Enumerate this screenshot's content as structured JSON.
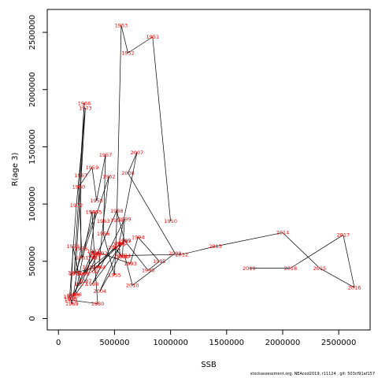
{
  "chart_data": {
    "type": "line",
    "title": "",
    "xlabel": "SSB",
    "ylabel": "R(age 3)",
    "xlim": [
      -100000,
      2780000
    ],
    "ylim": [
      -100000,
      2700000
    ],
    "x_ticks": [
      0,
      500000,
      1000000,
      1500000,
      2000000,
      2500000
    ],
    "x_tick_labels": [
      "0",
      "500000",
      "1000000",
      "1500000",
      "2000000",
      "2500000"
    ],
    "y_ticks": [
      0,
      500000,
      1000000,
      1500000,
      2000000,
      2500000
    ],
    "y_tick_labels": [
      "0",
      "500000",
      "1000000",
      "1500000",
      "2000000",
      "2500000"
    ],
    "grid": false,
    "line_color": "#000000",
    "label_color": "#ff0000",
    "series": [
      {
        "points": [
          {
            "year": "1950",
            "x": 1000000,
            "y": 850000
          },
          {
            "year": "1951",
            "x": 840000,
            "y": 2460000
          },
          {
            "year": "1952",
            "x": 620000,
            "y": 2320000
          },
          {
            "year": "1953",
            "x": 560000,
            "y": 2560000
          },
          {
            "year": "1954",
            "x": 520000,
            "y": 860000
          },
          {
            "year": "1955",
            "x": 500000,
            "y": 380000
          },
          {
            "year": "1956",
            "x": 400000,
            "y": 740000
          },
          {
            "year": "1957",
            "x": 420000,
            "y": 1430000
          },
          {
            "year": "1958",
            "x": 340000,
            "y": 1030000
          },
          {
            "year": "1959",
            "x": 300000,
            "y": 1320000
          },
          {
            "year": "1960",
            "x": 180000,
            "y": 1150000
          },
          {
            "year": "1961",
            "x": 210000,
            "y": 530000
          },
          {
            "year": "1962",
            "x": 450000,
            "y": 1240000
          },
          {
            "year": "1963",
            "x": 400000,
            "y": 850000
          },
          {
            "year": "1964",
            "x": 360000,
            "y": 450000
          },
          {
            "year": "1965",
            "x": 140000,
            "y": 400000
          },
          {
            "year": "1966",
            "x": 230000,
            "y": 1880000
          },
          {
            "year": "1967",
            "x": 200000,
            "y": 1250000
          },
          {
            "year": "1968",
            "x": 200000,
            "y": 610000
          },
          {
            "year": "1969",
            "x": 120000,
            "y": 130000
          },
          {
            "year": "1970",
            "x": 110000,
            "y": 170000
          },
          {
            "year": "1971",
            "x": 100000,
            "y": 190000
          },
          {
            "year": "1972",
            "x": 160000,
            "y": 990000
          },
          {
            "year": "1973",
            "x": 240000,
            "y": 1840000
          },
          {
            "year": "1974",
            "x": 150000,
            "y": 390000
          },
          {
            "year": "1975",
            "x": 330000,
            "y": 930000
          },
          {
            "year": "1976",
            "x": 270000,
            "y": 450000
          },
          {
            "year": "1977",
            "x": 200000,
            "y": 300000
          },
          {
            "year": "1978",
            "x": 130000,
            "y": 630000
          },
          {
            "year": "1979",
            "x": 110000,
            "y": 160000
          },
          {
            "year": "1980",
            "x": 350000,
            "y": 130000
          },
          {
            "year": "1981",
            "x": 320000,
            "y": 530000
          },
          {
            "year": "1982",
            "x": 310000,
            "y": 590000
          },
          {
            "year": "1983",
            "x": 130000,
            "y": 200000
          },
          {
            "year": "1984",
            "x": 320000,
            "y": 560000
          },
          {
            "year": "1985",
            "x": 300000,
            "y": 930000
          },
          {
            "year": "1986",
            "x": 150000,
            "y": 210000
          },
          {
            "year": "1987",
            "x": 240000,
            "y": 330000
          },
          {
            "year": "1988",
            "x": 520000,
            "y": 940000
          },
          {
            "year": "1989",
            "x": 590000,
            "y": 680000
          },
          {
            "year": "1990",
            "x": 220000,
            "y": 390000
          },
          {
            "year": "1991",
            "x": 340000,
            "y": 570000
          },
          {
            "year": "1992",
            "x": 380000,
            "y": 570000
          },
          {
            "year": "1993",
            "x": 640000,
            "y": 480000
          },
          {
            "year": "1994",
            "x": 710000,
            "y": 710000
          },
          {
            "year": "1995",
            "x": 900000,
            "y": 500000
          },
          {
            "year": "1996",
            "x": 800000,
            "y": 420000
          },
          {
            "year": "1997",
            "x": 590000,
            "y": 680000
          },
          {
            "year": "1998",
            "x": 300000,
            "y": 300000
          },
          {
            "year": "1999",
            "x": 590000,
            "y": 870000
          },
          {
            "year": "2000",
            "x": 570000,
            "y": 540000
          },
          {
            "year": "2001",
            "x": 500000,
            "y": 620000
          },
          {
            "year": "2002",
            "x": 300000,
            "y": 410000
          },
          {
            "year": "2003",
            "x": 560000,
            "y": 660000
          },
          {
            "year": "2004",
            "x": 370000,
            "y": 240000
          },
          {
            "year": "2005",
            "x": 550000,
            "y": 550000
          },
          {
            "year": "2006",
            "x": 540000,
            "y": 650000
          },
          {
            "year": "2007",
            "x": 700000,
            "y": 1450000
          },
          {
            "year": "2008",
            "x": 620000,
            "y": 1270000
          },
          {
            "year": "2009",
            "x": 1040000,
            "y": 570000
          },
          {
            "year": "2010",
            "x": 660000,
            "y": 290000
          },
          {
            "year": "2011",
            "x": 590000,
            "y": 550000
          },
          {
            "year": "2012",
            "x": 1100000,
            "y": 560000
          },
          {
            "year": "2013",
            "x": 1400000,
            "y": 630000
          },
          {
            "year": "2014",
            "x": 2000000,
            "y": 750000
          },
          {
            "year": "2015",
            "x": 2330000,
            "y": 440000
          },
          {
            "year": "2016",
            "x": 2640000,
            "y": 270000
          },
          {
            "year": "2017",
            "x": 2540000,
            "y": 730000
          },
          {
            "year": "2018",
            "x": 2070000,
            "y": 440000
          },
          {
            "year": "2019",
            "x": 1700000,
            "y": 440000
          }
        ]
      }
    ]
  },
  "footer": "stockassessment.org, NEAcod2019, r11124 , git: 503cf91af157"
}
